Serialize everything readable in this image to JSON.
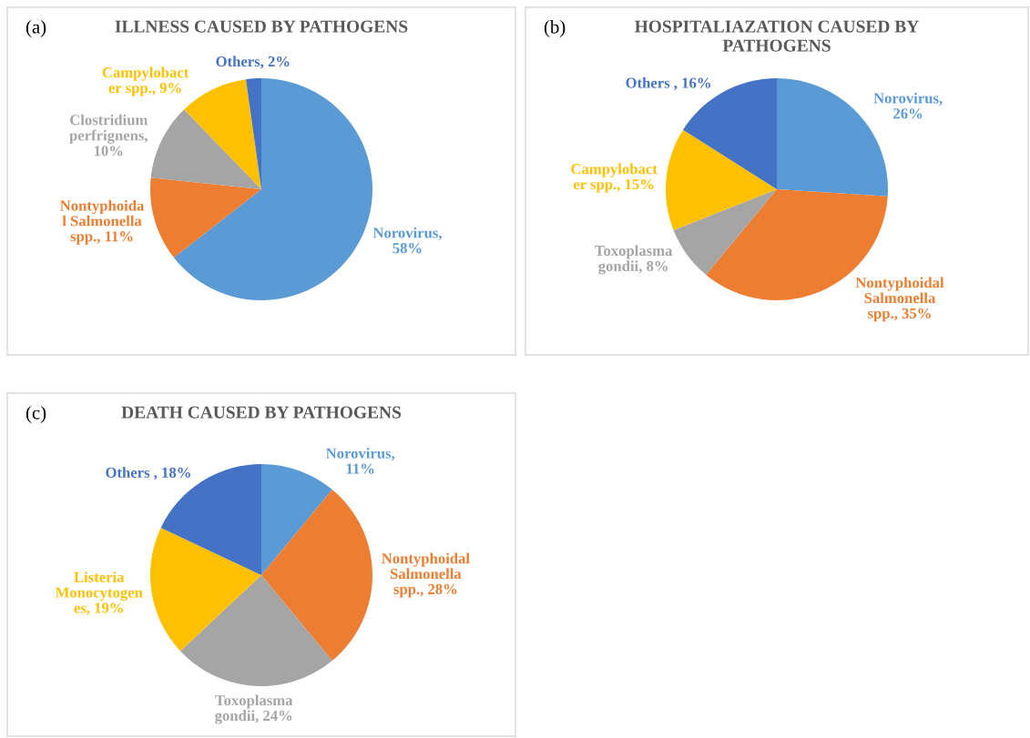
{
  "chart_data": [
    {
      "type": "pie",
      "title": "ILLNESS CAUSED BY PATHOGENS",
      "annotations": [
        "(a)"
      ],
      "categories": [
        "Norovirus,\n58%",
        "Nontyphoida\nl Salmonella\nspp., 11%",
        "Clostridium\nperfrignens,\n10%",
        "Campylobact\ner spp., 9%",
        "Others, 2%"
      ],
      "values": [
        58,
        11,
        10,
        9,
        2
      ],
      "colors": [
        "#5B9BD5",
        "#ED7D31",
        "#A5A5A5",
        "#FFC000",
        "#4472C4"
      ]
    },
    {
      "type": "pie",
      "title": "HOSPITALIAZATION CAUSED BY\nPATHOGENS",
      "annotations": [
        "(b)"
      ],
      "categories": [
        "Norovirus,\n26%",
        "Nontyphoidal\nSalmonella\nspp., 35%",
        "Toxoplasma\ngondii, 8%",
        "Campylobact\ner spp., 15%",
        "Others , 16%"
      ],
      "values": [
        26,
        35,
        8,
        15,
        16
      ],
      "colors": [
        "#5B9BD5",
        "#ED7D31",
        "#A5A5A5",
        "#FFC000",
        "#4472C4"
      ]
    },
    {
      "type": "pie",
      "title": "DEATH CAUSED BY PATHOGENS",
      "annotations": [
        "(c)"
      ],
      "categories": [
        "Norovirus,\n11%",
        "Nontyphoidal\nSalmonella\nspp., 28%",
        "Toxoplasma\ngondii, 24%",
        "Listeria\nMonocytogen\nes, 19%",
        "Others , 18%"
      ],
      "values": [
        11,
        28,
        24,
        19,
        18
      ],
      "colors": [
        "#5B9BD5",
        "#ED7D31",
        "#A5A5A5",
        "#FFC000",
        "#4472C4"
      ]
    }
  ]
}
